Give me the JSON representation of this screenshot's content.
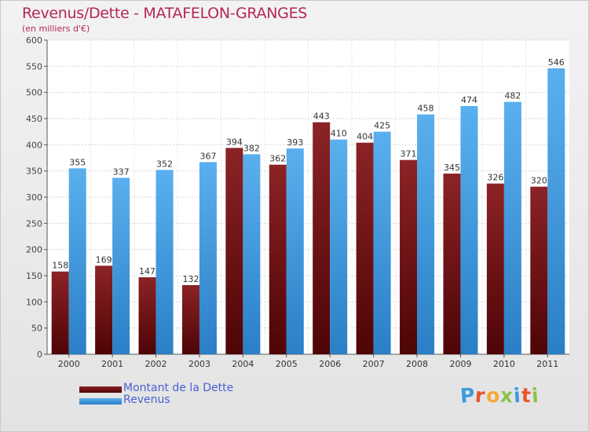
{
  "header": {
    "title": "Revenus/Dette - MATAFELON-GRANGES",
    "subtitle": "(en milliers d'€)"
  },
  "colors": {
    "dette": "#7a1518",
    "revenus": "#4aa3e6",
    "title": "#b5265a",
    "legend_text": "#4a5fd6"
  },
  "logo": {
    "text": "Proxiti",
    "letter_colors": [
      "#3a9bdc",
      "#e8552a",
      "#f2a93b",
      "#8bc34a",
      "#3a9bdc",
      "#e8552a",
      "#8bc34a"
    ]
  },
  "chart_data": {
    "type": "bar",
    "title": "Revenus/Dette - MATAFELON-GRANGES",
    "subtitle": "(en milliers d'€)",
    "categories": [
      "2000",
      "2001",
      "2002",
      "2003",
      "2004",
      "2005",
      "2006",
      "2007",
      "2008",
      "2009",
      "2010",
      "2011"
    ],
    "series": [
      {
        "name": "Montant de la Dette",
        "values": [
          158,
          169,
          147,
          132,
          394,
          362,
          443,
          404,
          371,
          345,
          326,
          320
        ]
      },
      {
        "name": "Revenus",
        "values": [
          355,
          337,
          352,
          367,
          382,
          393,
          410,
          425,
          458,
          474,
          482,
          546
        ]
      }
    ],
    "ylim": [
      0,
      600
    ],
    "yticks": [
      0,
      50,
      100,
      150,
      200,
      250,
      300,
      350,
      400,
      450,
      500,
      550,
      600
    ],
    "grid": true,
    "legend_position": "bottom-left"
  }
}
